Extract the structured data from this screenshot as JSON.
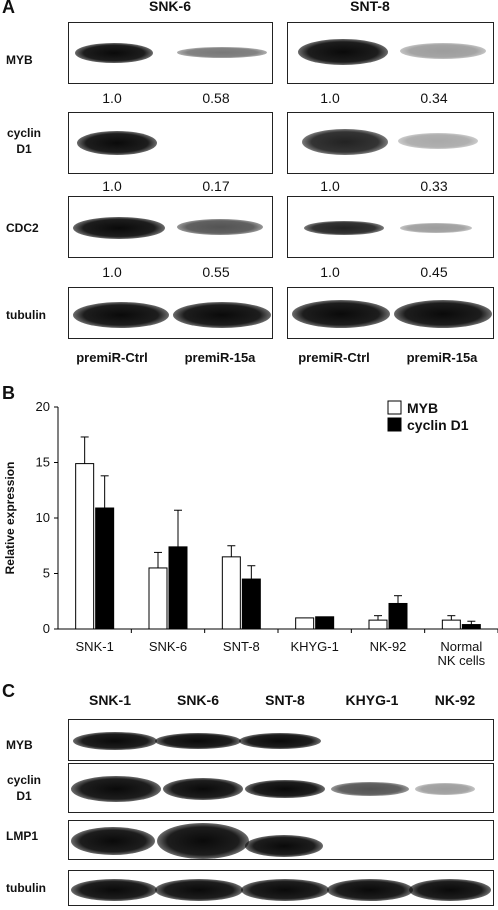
{
  "panel_a": {
    "label": "A",
    "cell_lines": [
      "SNK-6",
      "SNT-8"
    ],
    "rows": [
      {
        "name": "MYB",
        "values": [
          "1.0",
          "0.58",
          "1.0",
          "0.34"
        ]
      },
      {
        "name": "cyclin D1",
        "name_line1": "cyclin",
        "name_line2": "D1",
        "values": [
          "1.0",
          "0.17",
          "1.0",
          "0.33"
        ]
      },
      {
        "name": "CDC2",
        "values": [
          "1.0",
          "0.55",
          "1.0",
          "0.45"
        ]
      },
      {
        "name": "tubulin"
      }
    ],
    "conditions": [
      "premiR-Ctrl",
      "premiR-15a",
      "premiR-Ctrl",
      "premiR-15a"
    ]
  },
  "panel_b": {
    "label": "B",
    "chart_data": {
      "type": "bar",
      "categories": [
        "SNK-1",
        "SNK-6",
        "SNT-8",
        "KHYG-1",
        "NK-92",
        "Normal NK cells"
      ],
      "category_lines": [
        [
          "SNK-1"
        ],
        [
          "SNK-6"
        ],
        [
          "SNT-8"
        ],
        [
          "KHYG-1"
        ],
        [
          "NK-92"
        ],
        [
          "Normal",
          "NK cells"
        ]
      ],
      "series": [
        {
          "name": "MYB",
          "values": [
            14.9,
            5.5,
            6.5,
            1.0,
            0.8,
            0.8
          ],
          "errors": [
            2.4,
            1.4,
            1.0,
            0.0,
            0.4,
            0.4
          ],
          "color": "#ffffff"
        },
        {
          "name": "cyclin D1",
          "values": [
            10.9,
            7.4,
            4.5,
            1.1,
            2.3,
            0.4
          ],
          "errors": [
            2.9,
            3.3,
            1.2,
            0.0,
            0.7,
            0.3
          ],
          "color": "#000000"
        }
      ],
      "ylabel": "Relative expression",
      "ylim": [
        0,
        20
      ],
      "yticks": [
        0,
        5,
        10,
        15,
        20
      ],
      "legend": "top-right",
      "grid": false
    }
  },
  "panel_c": {
    "label": "C",
    "cell_lines": [
      "SNK-1",
      "SNK-6",
      "SNT-8",
      "KHYG-1",
      "NK-92"
    ],
    "rows": [
      {
        "name": "MYB"
      },
      {
        "name": "cyclin D1",
        "name_line1": "cyclin",
        "name_line2": "D1"
      },
      {
        "name": "LMP1"
      },
      {
        "name": "tubulin"
      }
    ]
  }
}
